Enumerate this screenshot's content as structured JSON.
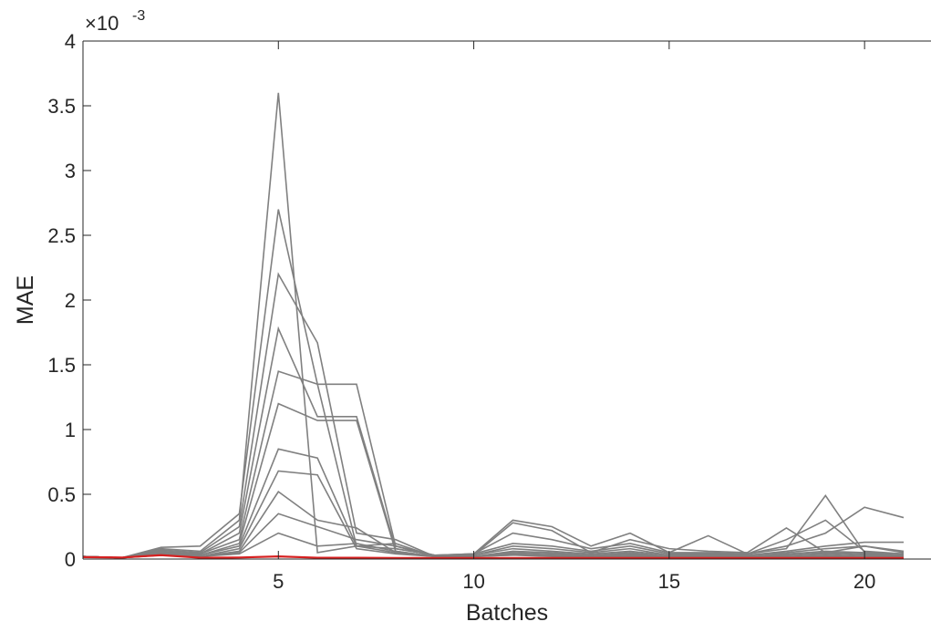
{
  "chart_data": {
    "type": "line",
    "x_label": "Batches",
    "y_label": "MAE",
    "y_multiplier": {
      "base": "×10",
      "power": "-3"
    },
    "xlim": [
      0,
      21.7
    ],
    "xticks": [
      5,
      10,
      15,
      20
    ],
    "ylim": [
      0,
      4
    ],
    "yticks": [
      0,
      0.5,
      1,
      1.5,
      2,
      2.5,
      3,
      3.5,
      4
    ],
    "x": [
      0,
      1,
      2,
      3,
      4,
      5,
      6,
      7,
      8,
      9,
      10,
      11,
      12,
      13,
      14,
      15,
      16,
      17,
      18,
      19,
      20,
      21
    ],
    "series": [
      {
        "color": "#808080",
        "values": [
          0.02,
          0.01,
          0.08,
          0.06,
          0.3,
          3.6,
          0.05,
          0.1,
          0.08,
          0.03,
          0.04,
          0.3,
          0.25,
          0.1,
          0.2,
          0.05,
          0.05,
          0.04,
          0.1,
          0.2,
          0.4,
          0.32
        ]
      },
      {
        "color": "#808080",
        "values": [
          0.02,
          0.01,
          0.09,
          0.1,
          0.35,
          2.7,
          1.35,
          1.35,
          0.1,
          0.03,
          0.03,
          0.28,
          0.22,
          0.05,
          0.15,
          0.08,
          0.06,
          0.05,
          0.24,
          0.05,
          0.1,
          0.05
        ]
      },
      {
        "color": "#808080",
        "values": [
          0.02,
          0.01,
          0.07,
          0.05,
          0.25,
          2.2,
          1.67,
          0.2,
          0.15,
          0.02,
          0.04,
          0.2,
          0.15,
          0.08,
          0.12,
          0.05,
          0.18,
          0.04,
          0.08,
          0.49,
          0.05,
          0.02
        ]
      },
      {
        "color": "#808080",
        "values": [
          0.02,
          0.01,
          0.06,
          0.04,
          0.2,
          1.78,
          1.1,
          1.1,
          0.08,
          0.03,
          0.04,
          0.12,
          0.1,
          0.06,
          0.1,
          0.04,
          0.04,
          0.04,
          0.15,
          0.3,
          0.06,
          0.04
        ]
      },
      {
        "color": "#808080",
        "values": [
          0.02,
          0.01,
          0.05,
          0.04,
          0.15,
          1.45,
          1.35,
          0.1,
          0.12,
          0.02,
          0.03,
          0.1,
          0.08,
          0.05,
          0.08,
          0.03,
          0.03,
          0.03,
          0.06,
          0.1,
          0.13,
          0.13
        ]
      },
      {
        "color": "#808080",
        "values": [
          0.02,
          0.01,
          0.05,
          0.03,
          0.12,
          1.2,
          1.07,
          1.07,
          0.06,
          0.02,
          0.03,
          0.08,
          0.06,
          0.04,
          0.06,
          0.03,
          0.03,
          0.03,
          0.05,
          0.08,
          0.1,
          0.06
        ]
      },
      {
        "color": "#808080",
        "values": [
          0.02,
          0.01,
          0.04,
          0.03,
          0.1,
          0.85,
          0.78,
          0.1,
          0.05,
          0.02,
          0.02,
          0.06,
          0.05,
          0.03,
          0.05,
          0.02,
          0.02,
          0.02,
          0.04,
          0.06,
          0.05,
          0.04
        ]
      },
      {
        "color": "#808080",
        "values": [
          0.02,
          0.01,
          0.04,
          0.02,
          0.08,
          0.68,
          0.65,
          0.08,
          0.04,
          0.02,
          0.02,
          0.05,
          0.04,
          0.03,
          0.04,
          0.02,
          0.02,
          0.02,
          0.03,
          0.05,
          0.04,
          0.03
        ]
      },
      {
        "color": "#808080",
        "values": [
          0.02,
          0.01,
          0.03,
          0.02,
          0.06,
          0.52,
          0.3,
          0.24,
          0.05,
          0.02,
          0.02,
          0.04,
          0.03,
          0.02,
          0.03,
          0.02,
          0.02,
          0.02,
          0.03,
          0.04,
          0.03,
          0.03
        ]
      },
      {
        "color": "#808080",
        "values": [
          0.02,
          0.01,
          0.03,
          0.02,
          0.05,
          0.35,
          0.25,
          0.15,
          0.1,
          0.02,
          0.02,
          0.03,
          0.03,
          0.02,
          0.03,
          0.02,
          0.02,
          0.02,
          0.02,
          0.03,
          0.02,
          0.02
        ]
      },
      {
        "color": "#808080",
        "values": [
          0.02,
          0.01,
          0.03,
          0.02,
          0.04,
          0.2,
          0.1,
          0.12,
          0.06,
          0.02,
          0.02,
          0.03,
          0.02,
          0.02,
          0.02,
          0.02,
          0.02,
          0.02,
          0.02,
          0.02,
          0.02,
          0.02
        ]
      },
      {
        "color": "#d62020",
        "values": [
          0.015,
          0.012,
          0.03,
          0.01,
          0.012,
          0.02,
          0.01,
          0.01,
          0.008,
          0.008,
          0.008,
          0.008,
          0.008,
          0.008,
          0.008,
          0.008,
          0.008,
          0.008,
          0.008,
          0.008,
          0.008,
          0.008
        ]
      }
    ]
  }
}
